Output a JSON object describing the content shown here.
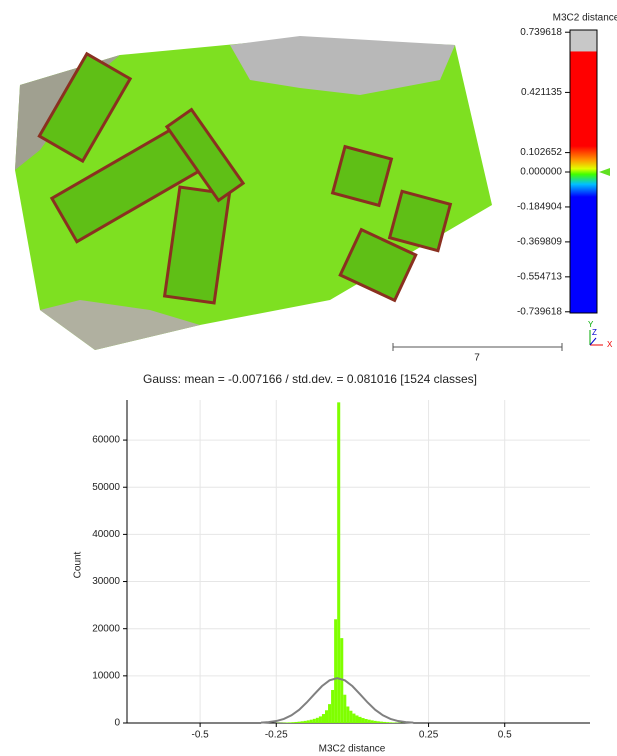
{
  "scalar_bar": {
    "title": "M3C2 distance",
    "ticks": [
      {
        "value": 0.739618,
        "label": "0.739618"
      },
      {
        "value": 0.421135,
        "label": "0.421135"
      },
      {
        "value": 0.102652,
        "label": "0.102652"
      },
      {
        "value": 0,
        "label": "0.000000"
      },
      {
        "value": -0.184904,
        "label": "-0.184904"
      },
      {
        "value": -0.369809,
        "label": "-0.369809"
      },
      {
        "value": -0.554713,
        "label": "-0.554713"
      },
      {
        "value": -0.739618,
        "label": "-0.739618"
      }
    ],
    "scale_label": "7",
    "axis_labels": [
      "Y",
      "Z",
      "X"
    ]
  },
  "chart_data": {
    "type": "histogram",
    "title": "Gauss: mean = -0.007166 / std.dev. = 0.081016 [1524 classes]",
    "x_label": "M3C2 distance",
    "y_label": "Count",
    "xlim": [
      -0.74,
      0.78
    ],
    "ylim": [
      0,
      68500
    ],
    "xticks": [
      -0.5,
      -0.25,
      0.25,
      0.5
    ],
    "yticks": [
      0,
      10000,
      20000,
      30000,
      40000,
      50000,
      60000
    ],
    "grid": true,
    "color": "#7fff00",
    "bins": [
      -0.25,
      -0.24,
      -0.23,
      -0.22,
      -0.21,
      -0.2,
      -0.19,
      -0.18,
      -0.17,
      -0.16,
      -0.15,
      -0.14,
      -0.13,
      -0.12,
      -0.11,
      -0.1,
      -0.09,
      -0.08,
      -0.07,
      -0.06,
      -0.05,
      -0.04,
      -0.03,
      -0.02,
      -0.01,
      0,
      0.01,
      0.02,
      0.03,
      0.04,
      0.05,
      0.06,
      0.07,
      0.08,
      0.09,
      0.1,
      0.11,
      0.12,
      0.13,
      0.14,
      0.15,
      0.16,
      0.17,
      0.18,
      0.19,
      0.2
    ],
    "values": [
      50,
      60,
      80,
      100,
      130,
      170,
      220,
      280,
      360,
      450,
      560,
      700,
      880,
      1100,
      1400,
      1900,
      2700,
      4000,
      7000,
      22000,
      68000,
      18000,
      6000,
      3500,
      2600,
      2000,
      1600,
      1300,
      1050,
      850,
      700,
      560,
      450,
      360,
      290,
      230,
      180,
      140,
      110,
      85,
      65,
      50,
      38,
      28,
      20
    ],
    "gauss": {
      "color": "#808080",
      "x": [
        -0.3,
        -0.275,
        -0.25,
        -0.225,
        -0.2,
        -0.175,
        -0.15,
        -0.125,
        -0.1,
        -0.075,
        -0.05,
        -0.025,
        0,
        0.025,
        0.05,
        0.075,
        0.1,
        0.125,
        0.15,
        0.175,
        0.2
      ],
      "values": [
        72,
        182,
        418,
        868,
        1640,
        2800,
        4350,
        6120,
        7820,
        9050,
        9500,
        9050,
        7820,
        6120,
        4350,
        2800,
        1640,
        868,
        418,
        182,
        72
      ]
    }
  }
}
